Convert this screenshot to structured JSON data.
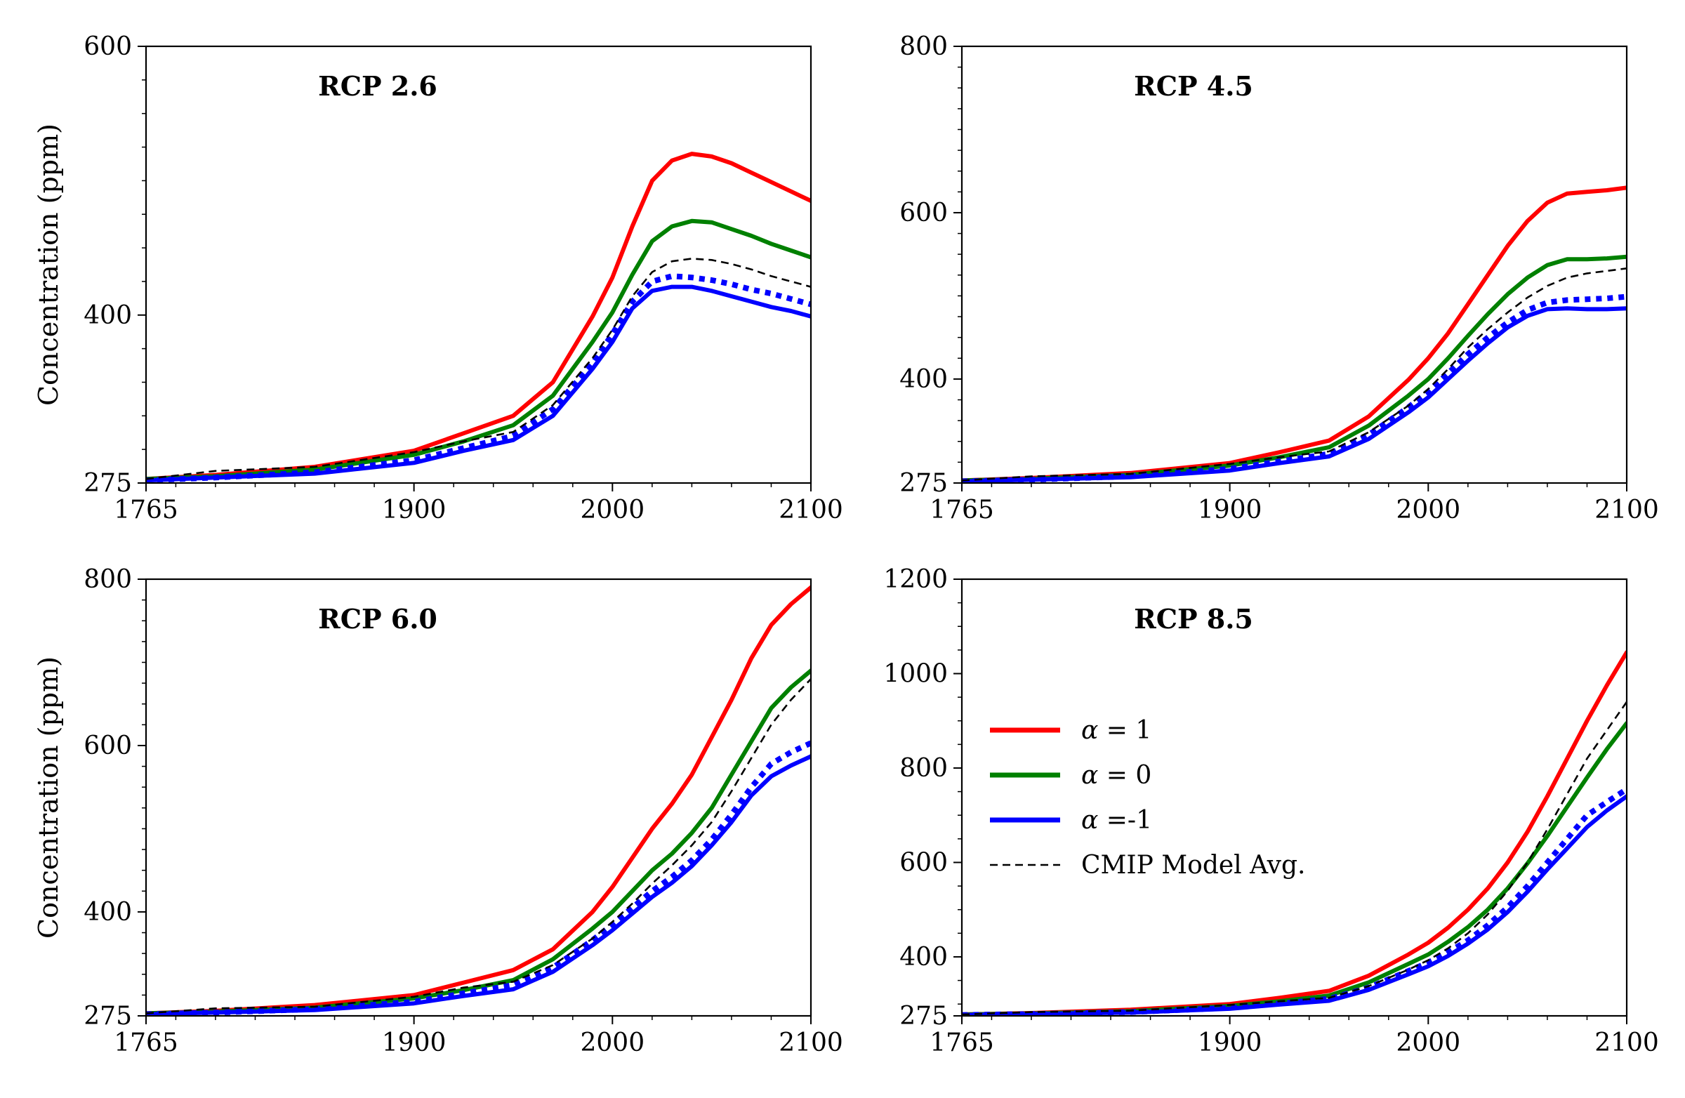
{
  "figure": {
    "ylabel": "Concentration (ppm)"
  },
  "colors": {
    "alpha_1": "#ff0000",
    "alpha_0": "#008000",
    "alpha_m1": "#0000ff",
    "cmip": "#000000"
  },
  "legend": {
    "placement": "panel RCP 8.5, center-left",
    "entries": [
      {
        "series": "alpha_1",
        "prefix": "α",
        "label": " = 1",
        "style": "solid"
      },
      {
        "series": "alpha_0",
        "prefix": "α",
        "label": " = 0",
        "style": "solid"
      },
      {
        "series": "alpha_m1",
        "prefix": "α",
        "label": " =-1",
        "style": "solid"
      },
      {
        "series": "cmip",
        "prefix": "",
        "label": "CMIP Model Avg.",
        "style": "dashed"
      }
    ]
  },
  "chart_data": [
    {
      "type": "line",
      "title": "RCP 2.6",
      "xlabel": "",
      "ylabel": "Concentration (ppm)",
      "xlim": [
        1765,
        2100
      ],
      "ylim": [
        275,
        600
      ],
      "xticks": [
        1765,
        1900,
        2000,
        2100
      ],
      "yticks": [
        275,
        400,
        600
      ],
      "x": [
        1765,
        1800,
        1850,
        1900,
        1925,
        1950,
        1970,
        1990,
        2000,
        2010,
        2020,
        2030,
        2040,
        2050,
        2060,
        2070,
        2080,
        2090,
        2100
      ],
      "series": [
        {
          "key": "alpha_1",
          "style": "solid",
          "values": [
            278,
            281,
            287,
            299,
            312,
            325,
            350,
            399,
            428,
            466,
            500,
            515,
            520,
            518,
            513,
            506,
            499,
            492,
            485
          ]
        },
        {
          "key": "alpha_0",
          "style": "solid",
          "values": [
            278,
            280,
            285,
            296,
            306,
            318,
            340,
            380,
            402,
            430,
            455,
            466,
            470,
            469,
            464,
            459,
            453,
            448,
            443
          ]
        },
        {
          "key": "alpha_m1",
          "style": "dashed-blue",
          "values": [
            277,
            279,
            283,
            292,
            301,
            310,
            330,
            364,
            386,
            410,
            425,
            429,
            428,
            426,
            423,
            419,
            416,
            412,
            408
          ]
        },
        {
          "key": "alpha_m1",
          "style": "solid",
          "values": [
            277,
            279,
            282,
            290,
            299,
            307,
            325,
            360,
            380,
            405,
            418,
            421,
            421,
            418,
            414,
            410,
            406,
            403,
            399
          ]
        },
        {
          "key": "cmip",
          "style": "dashed",
          "values": [
            278,
            284,
            287,
            298,
            306,
            313,
            333,
            368,
            389,
            414,
            432,
            440,
            442,
            441,
            438,
            434,
            429,
            425,
            421
          ]
        }
      ]
    },
    {
      "type": "line",
      "title": "RCP 4.5",
      "xlabel": "",
      "ylabel": "",
      "xlim": [
        1765,
        2100
      ],
      "ylim": [
        275,
        800
      ],
      "xticks": [
        1765,
        1900,
        2000,
        2100
      ],
      "yticks": [
        275,
        400,
        600,
        800
      ],
      "x": [
        1765,
        1800,
        1850,
        1900,
        1925,
        1950,
        1970,
        1990,
        2000,
        2010,
        2020,
        2030,
        2040,
        2050,
        2060,
        2070,
        2080,
        2090,
        2100
      ],
      "series": [
        {
          "key": "alpha_1",
          "style": "solid",
          "values": [
            278,
            281,
            287,
            299,
            312,
            326,
            355,
            399,
            425,
            455,
            490,
            525,
            560,
            590,
            612,
            623,
            625,
            627,
            630
          ]
        },
        {
          "key": "alpha_0",
          "style": "solid",
          "values": [
            278,
            280,
            285,
            296,
            306,
            318,
            344,
            380,
            400,
            425,
            452,
            478,
            502,
            522,
            537,
            544,
            544,
            545,
            547
          ]
        },
        {
          "key": "alpha_m1",
          "style": "dashed-blue",
          "values": [
            277,
            279,
            283,
            292,
            301,
            310,
            333,
            366,
            385,
            407,
            430,
            450,
            468,
            483,
            492,
            495,
            496,
            497,
            499
          ]
        },
        {
          "key": "alpha_m1",
          "style": "solid",
          "values": [
            277,
            279,
            282,
            290,
            299,
            307,
            328,
            360,
            378,
            400,
            422,
            443,
            462,
            476,
            484,
            485,
            484,
            484,
            485
          ]
        },
        {
          "key": "cmip",
          "style": "dashed",
          "values": [
            278,
            283,
            286,
            298,
            306,
            313,
            336,
            368,
            388,
            412,
            438,
            460,
            480,
            498,
            512,
            522,
            527,
            530,
            533
          ]
        }
      ]
    },
    {
      "type": "line",
      "title": "RCP 6.0",
      "xlabel": "",
      "ylabel": "Concentration (ppm)",
      "xlim": [
        1765,
        2100
      ],
      "ylim": [
        275,
        800
      ],
      "xticks": [
        1765,
        1900,
        2000,
        2100
      ],
      "yticks": [
        275,
        400,
        600,
        800
      ],
      "x": [
        1765,
        1800,
        1850,
        1900,
        1925,
        1950,
        1970,
        1990,
        2000,
        2010,
        2020,
        2030,
        2040,
        2050,
        2060,
        2070,
        2080,
        2090,
        2100
      ],
      "series": [
        {
          "key": "alpha_1",
          "style": "solid",
          "values": [
            278,
            281,
            288,
            300,
            315,
            330,
            355,
            400,
            430,
            465,
            500,
            530,
            565,
            610,
            655,
            705,
            745,
            770,
            790
          ]
        },
        {
          "key": "alpha_0",
          "style": "solid",
          "values": [
            278,
            280,
            285,
            296,
            306,
            318,
            343,
            380,
            400,
            425,
            450,
            470,
            495,
            525,
            565,
            605,
            645,
            670,
            690
          ]
        },
        {
          "key": "alpha_m1",
          "style": "dashed-blue",
          "values": [
            277,
            279,
            283,
            292,
            302,
            312,
            333,
            366,
            385,
            405,
            425,
            442,
            462,
            487,
            517,
            550,
            578,
            592,
            603
          ]
        },
        {
          "key": "alpha_m1",
          "style": "solid",
          "values": [
            277,
            279,
            282,
            290,
            299,
            307,
            328,
            360,
            378,
            398,
            418,
            435,
            455,
            480,
            508,
            540,
            563,
            576,
            587
          ]
        },
        {
          "key": "cmip",
          "style": "dashed",
          "values": [
            278,
            284,
            286,
            298,
            309,
            316,
            336,
            368,
            388,
            410,
            434,
            456,
            480,
            508,
            545,
            585,
            625,
            655,
            680
          ]
        }
      ]
    },
    {
      "type": "line",
      "title": "RCP 8.5",
      "xlabel": "",
      "ylabel": "",
      "xlim": [
        1765,
        2100
      ],
      "ylim": [
        275,
        1200
      ],
      "xticks": [
        1765,
        1900,
        2000,
        2100
      ],
      "yticks": [
        275,
        400,
        600,
        800,
        1000,
        1200
      ],
      "x": [
        1765,
        1800,
        1850,
        1900,
        1925,
        1950,
        1970,
        1990,
        2000,
        2010,
        2020,
        2030,
        2040,
        2050,
        2060,
        2070,
        2080,
        2090,
        2100
      ],
      "series": [
        {
          "key": "alpha_1",
          "style": "solid",
          "values": [
            278,
            281,
            288,
            300,
            313,
            328,
            360,
            405,
            430,
            462,
            500,
            545,
            600,
            665,
            740,
            820,
            900,
            975,
            1045
          ]
        },
        {
          "key": "alpha_0",
          "style": "solid",
          "values": [
            278,
            280,
            285,
            296,
            306,
            318,
            346,
            385,
            405,
            432,
            463,
            500,
            545,
            598,
            656,
            718,
            780,
            840,
            895
          ]
        },
        {
          "key": "alpha_m1",
          "style": "dashed-blue",
          "values": [
            277,
            279,
            283,
            292,
            301,
            311,
            335,
            370,
            388,
            410,
            435,
            467,
            505,
            550,
            600,
            650,
            700,
            728,
            755
          ]
        },
        {
          "key": "alpha_m1",
          "style": "solid",
          "values": [
            277,
            279,
            282,
            290,
            299,
            307,
            330,
            363,
            380,
            402,
            428,
            458,
            495,
            538,
            585,
            630,
            675,
            710,
            740
          ]
        },
        {
          "key": "cmip",
          "style": "dashed",
          "values": [
            278,
            283,
            286,
            298,
            306,
            313,
            338,
            373,
            393,
            418,
            450,
            490,
            540,
            600,
            670,
            745,
            820,
            880,
            940
          ]
        }
      ]
    }
  ]
}
